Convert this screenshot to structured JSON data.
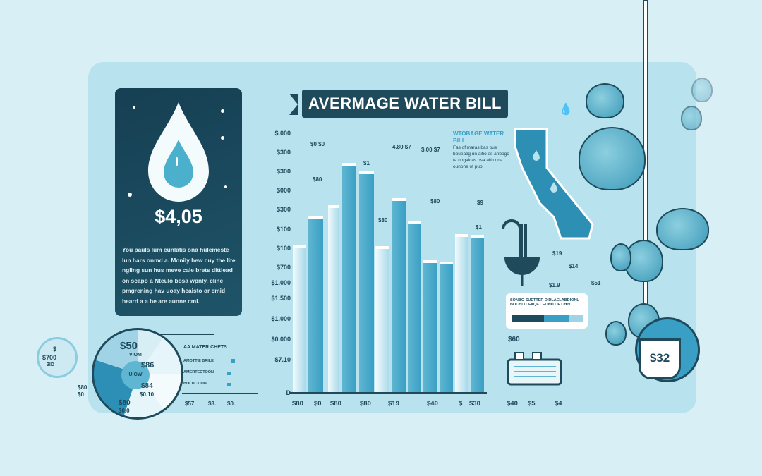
{
  "title": "AVERMAGE WATER BILL",
  "card": {
    "amount": "$4,05",
    "description": "You pauls lum eunlatis ona hulemeste lun hars onmd a. Monily hew cuy the lite ngling sun hus meve cale brets dittlead on scapo a Nteulo bosa wpnly, cline pmgrening hav uoay heaisto or cmid beard a a be are aunne cml.",
    "icon": "water-drop-icon"
  },
  "chart": {
    "y_labels": [
      "$.000",
      "$300",
      "$300",
      "$000",
      "$300",
      "$100",
      "$100",
      "$700",
      "$1.000",
      "$1.500",
      "$1.000",
      "$0.000",
      "$7.10"
    ],
    "x_labels": [
      "$80",
      "$0",
      "$80",
      "$80",
      "$19",
      "$40",
      "$",
      "$30"
    ],
    "bar_labels": [
      "$0 $0",
      "$80",
      "4.80 $7",
      "$0",
      "$.00 $7",
      "$1",
      "$80",
      "$9",
      "$1"
    ],
    "baseline_label": "— D"
  },
  "notes": {
    "title": "WTOBAGE WATER BILL",
    "body": "Fas ofimaras bas oue boueatig un aitio as anbogo ta ungaicas osa alth ona ounone of pub."
  },
  "map": {
    "labels": [
      "$19",
      "$14",
      "$1.9",
      "$51"
    ]
  },
  "legend_box": {
    "text": "SONBO SUETTER DIDLAELABDIONL BOCHLIT FAQET EOND OF CHIV."
  },
  "misc_labels": {
    "sixty": "$60",
    "right_x": [
      "$40",
      "$5",
      "$4"
    ]
  },
  "cup": {
    "amount": "$32"
  },
  "pie": {
    "labels": [
      "$50",
      "VIOM",
      "$86",
      "$84",
      "$0.10",
      "$80",
      "$0.0",
      "$80",
      "$0"
    ],
    "center": "UIOW",
    "mini": [
      "$",
      "$700",
      "3ID"
    ]
  },
  "mini_legend": {
    "title": "AA  MATER CHETS",
    "items": [
      "AMOTTIE BRILE",
      "AMERTECTOON",
      "BOLUCTION"
    ],
    "axis": [
      "$57",
      "$3.",
      "$0."
    ]
  },
  "colors": {
    "background": "#d9eff6",
    "panel": "#b7e2ee",
    "dark": "#1e4a5c",
    "accent": "#3a9fc4"
  }
}
